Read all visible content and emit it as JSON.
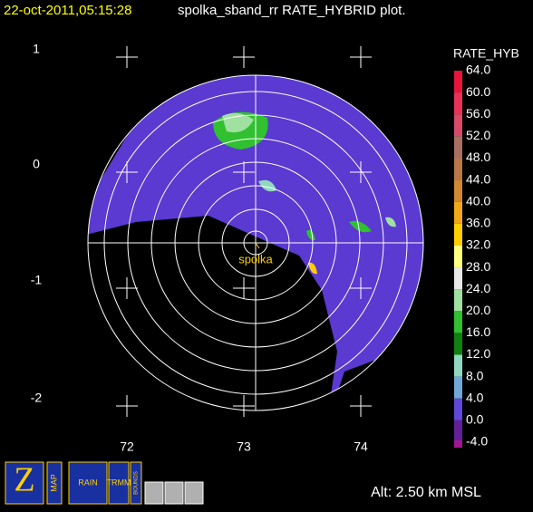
{
  "header": {
    "timestamp": "22-oct-2011,05:15:28",
    "title": "spolka_sband_rr RATE_HYBRID  plot."
  },
  "axes": {
    "y_labels": [
      "1",
      "0",
      "-1",
      "-2"
    ],
    "x_labels": [
      "72",
      "73",
      "74"
    ]
  },
  "colorbar": {
    "title": "RATE_HYB",
    "levels": [
      {
        "label": "64.0",
        "color": "#e8143c"
      },
      {
        "label": "60.0",
        "color": "#e83258"
      },
      {
        "label": "56.0",
        "color": "#d84a6a"
      },
      {
        "label": "52.0",
        "color": "#a87060"
      },
      {
        "label": "48.0",
        "color": "#b87848"
      },
      {
        "label": "44.0",
        "color": "#d08a30"
      },
      {
        "label": "40.0",
        "color": "#f0a818"
      },
      {
        "label": "36.0",
        "color": "#ffd000"
      },
      {
        "label": "32.0",
        "color": "#ffff80"
      },
      {
        "label": "28.0",
        "color": "#e8e8e8"
      },
      {
        "label": "24.0",
        "color": "#a0e0a0"
      },
      {
        "label": "20.0",
        "color": "#30c030"
      },
      {
        "label": "16.0",
        "color": "#108010"
      },
      {
        "label": "12.0",
        "color": "#90d8c0"
      },
      {
        "label": "8.0",
        "color": "#70a8d8"
      },
      {
        "label": "4.0",
        "color": "#6048d8"
      },
      {
        "label": "0.0",
        "color": "#602098"
      },
      {
        "label": "-4.0",
        "color": "#a01890"
      }
    ]
  },
  "station": {
    "name": "spolka"
  },
  "footer": {
    "altitude": "Alt: 2.50 km MSL"
  },
  "toolbar": {
    "buttons": [
      "MAP",
      "RAIN",
      "TRMM",
      "BOUNDS"
    ]
  }
}
